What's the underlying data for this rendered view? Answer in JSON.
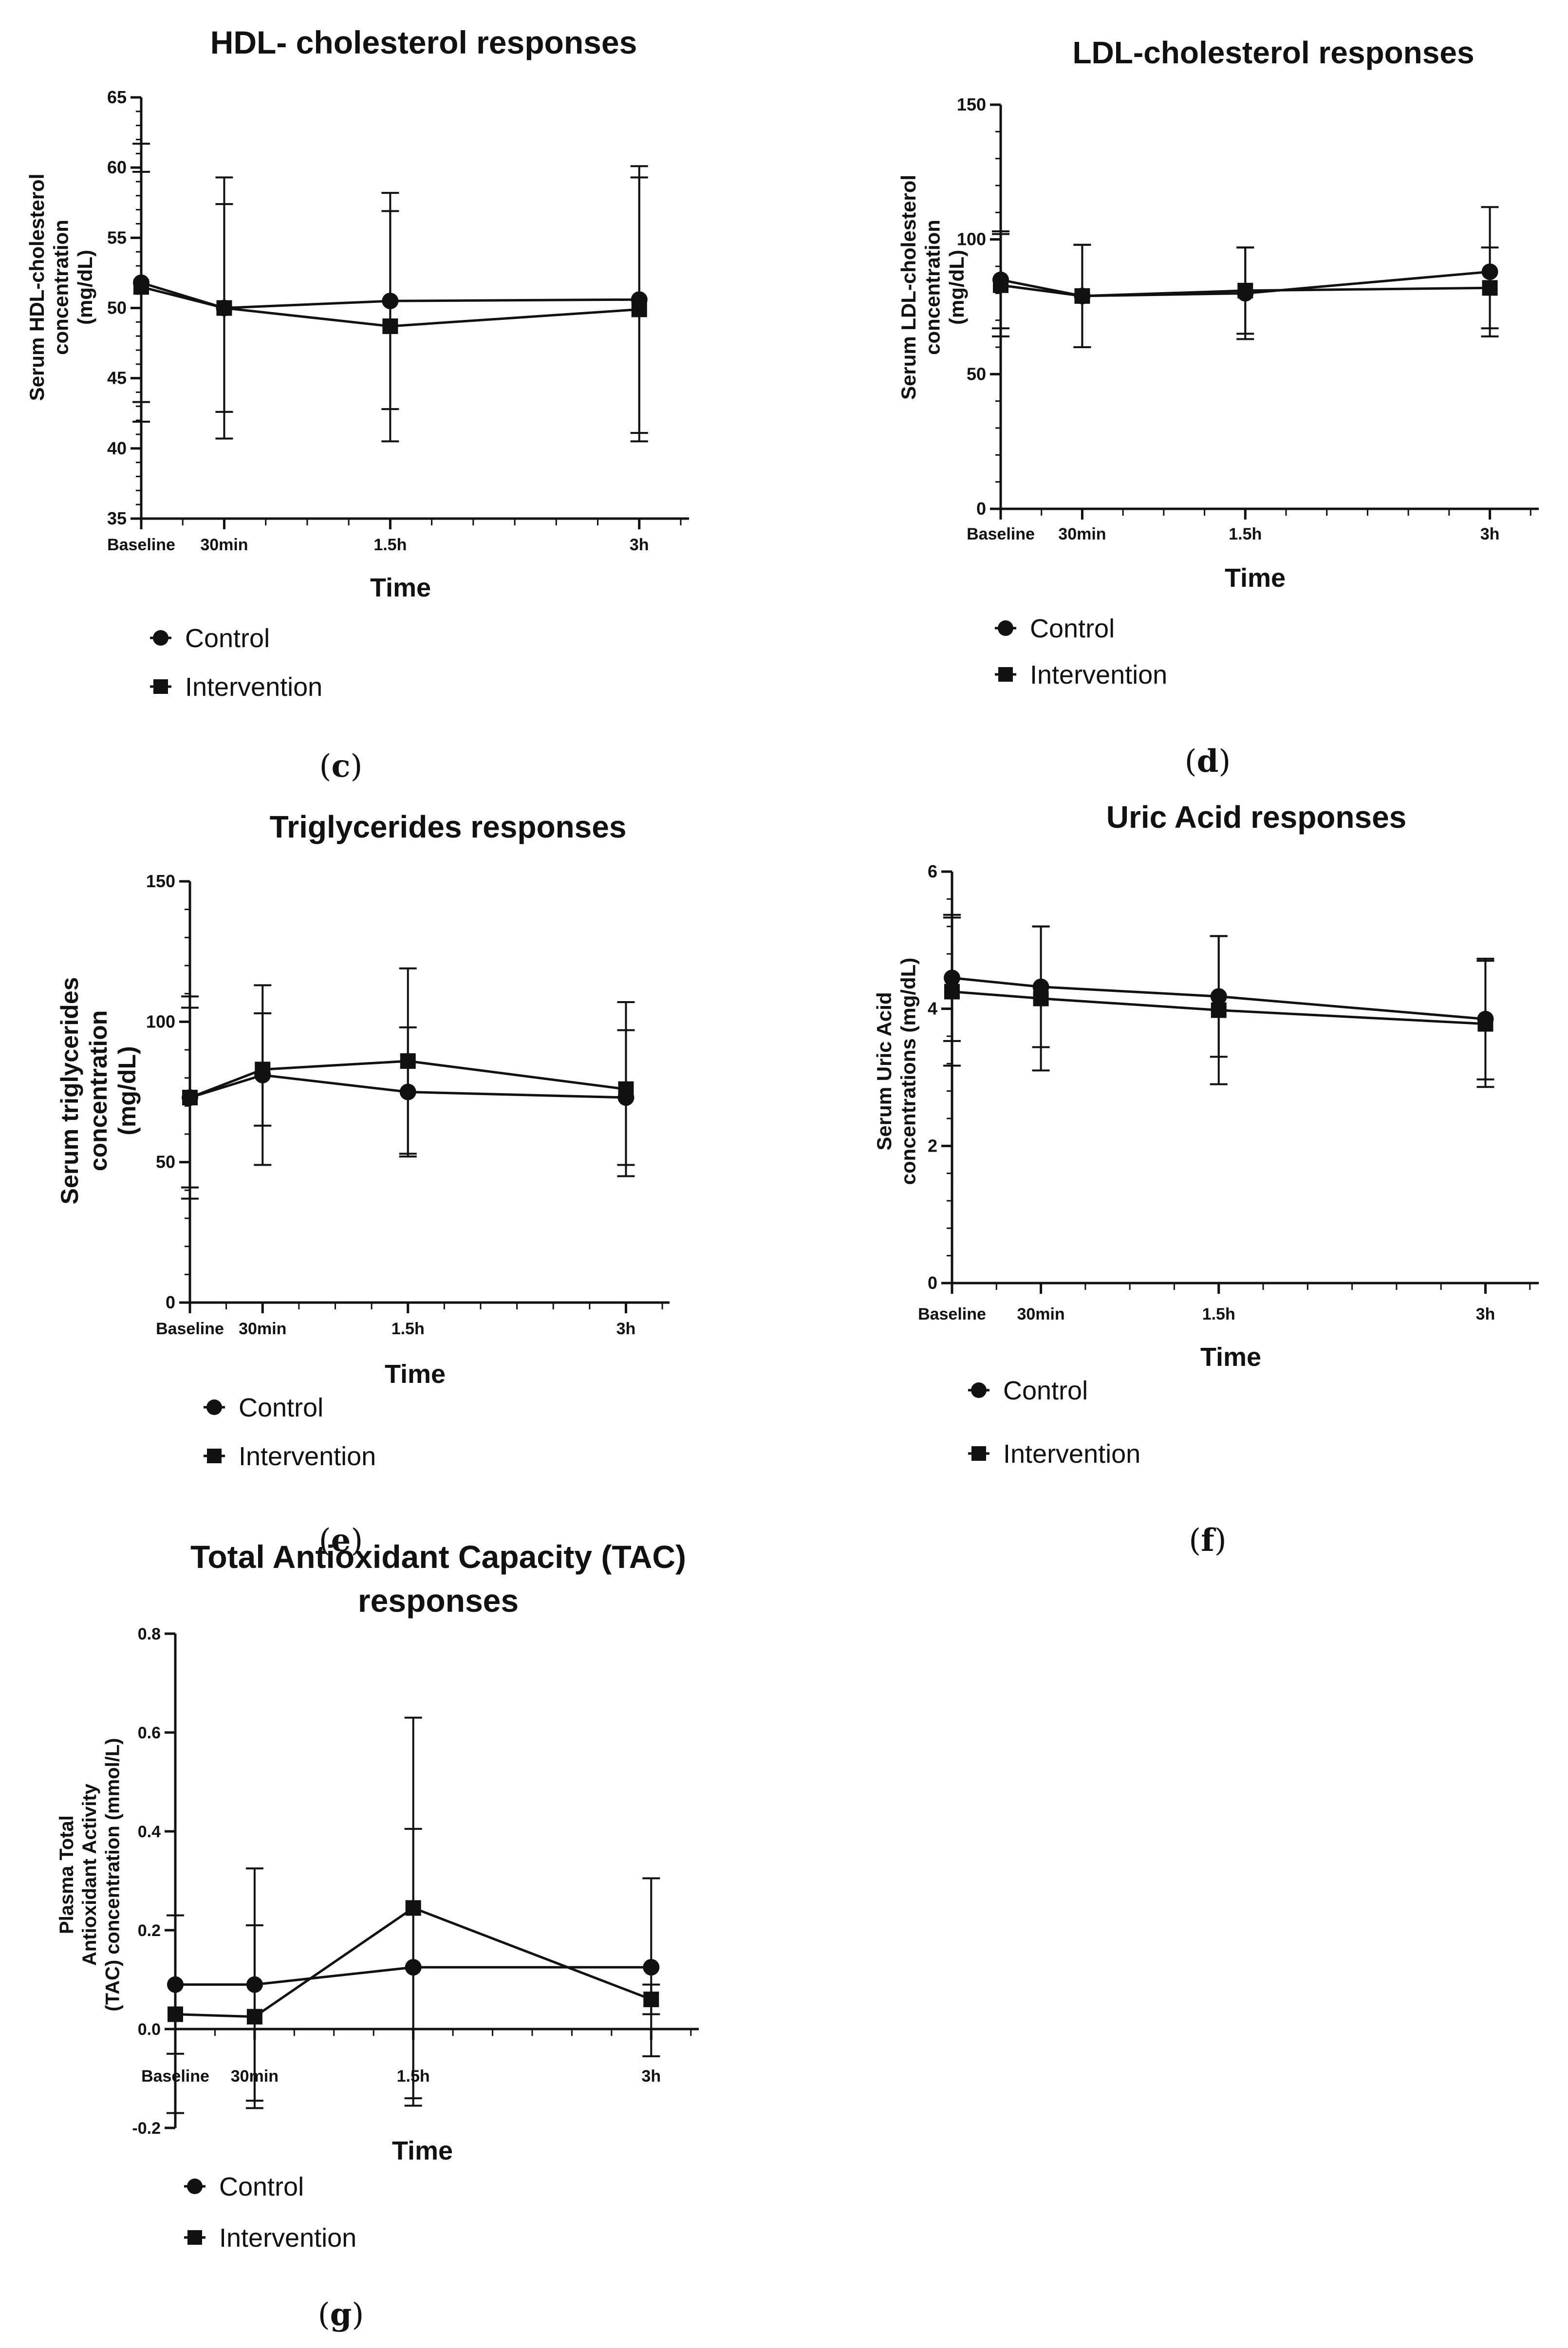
{
  "chart_data": [
    {
      "id": "c",
      "type": "line",
      "title": "HDL- cholesterol responses",
      "xlabel": "Time",
      "ylabel": "Serum HDL-cholesterol concentration (mg/dL)",
      "ylabel_lines": [
        "Serum HDL-cholesterol",
        "concentration",
        "(mg/dL)"
      ],
      "categories": [
        "Baseline",
        "30min",
        "1.5h",
        "3h"
      ],
      "x_hours": [
        0,
        0.5,
        1.5,
        3
      ],
      "x_range": [
        0,
        3.3
      ],
      "ylim": [
        35,
        65
      ],
      "yticks": [
        35,
        40,
        45,
        50,
        55,
        60,
        65
      ],
      "series": [
        {
          "name": "Control",
          "marker": "circle",
          "values": [
            51.8,
            50.0,
            50.5,
            50.6
          ],
          "error": [
            9.9,
            7.4,
            7.7,
            9.5
          ]
        },
        {
          "name": "Intervention",
          "marker": "square",
          "values": [
            51.5,
            50.0,
            48.7,
            49.9
          ],
          "error": [
            8.2,
            9.3,
            8.2,
            9.4
          ]
        }
      ],
      "panel_label": "c"
    },
    {
      "id": "d",
      "type": "line",
      "title": "LDL-cholesterol responses",
      "xlabel": "Time",
      "ylabel": "Serum LDL-cholesterol concentration (mg/dL)",
      "ylabel_lines": [
        "Serum LDL-cholesterol",
        "concentration",
        "(mg/dL)"
      ],
      "categories": [
        "Baseline",
        "30min",
        "1.5h",
        "3h"
      ],
      "x_hours": [
        0,
        0.5,
        1.5,
        3
      ],
      "x_range": [
        0,
        3.3
      ],
      "ylim": [
        0,
        150
      ],
      "yticks": [
        0,
        50,
        100,
        150
      ],
      "series": [
        {
          "name": "Control",
          "marker": "circle",
          "values": [
            85,
            79,
            80,
            88
          ],
          "error": [
            18,
            19,
            17,
            24
          ]
        },
        {
          "name": "Intervention",
          "marker": "square",
          "values": [
            83,
            79,
            81,
            82
          ],
          "error": [
            19,
            19,
            16,
            15
          ]
        }
      ],
      "panel_label": "d"
    },
    {
      "id": "e",
      "type": "line",
      "title": "Triglycerides responses",
      "xlabel": "Time",
      "ylabel": "Serum triglycerides concentration (mg/dL)",
      "ylabel_lines": [
        "Serum triglycerides",
        "concentration",
        "(mg/dL)"
      ],
      "categories": [
        "Baseline",
        "30min",
        "1.5h",
        "3h"
      ],
      "x_hours": [
        0,
        0.5,
        1.5,
        3
      ],
      "x_range": [
        0,
        3.3
      ],
      "ylim": [
        0,
        150
      ],
      "yticks": [
        0,
        50,
        100,
        150
      ],
      "series": [
        {
          "name": "Control",
          "marker": "circle",
          "values": [
            73,
            81,
            75,
            73
          ],
          "error": [
            36,
            32,
            23,
            24
          ]
        },
        {
          "name": "Intervention",
          "marker": "square",
          "values": [
            73,
            83,
            86,
            76
          ],
          "error": [
            32,
            20,
            33,
            31
          ]
        }
      ],
      "panel_label": "e"
    },
    {
      "id": "f",
      "type": "line",
      "title": "Uric Acid responses",
      "xlabel": "Time",
      "ylabel": "Serum Uric Acid concentrations (mg/dL)",
      "ylabel_lines": [
        "Serum Uric Acid",
        "concentrations (mg/dL)"
      ],
      "categories": [
        "Baseline",
        "30min",
        "1.5h",
        "3h"
      ],
      "x_hours": [
        0,
        0.5,
        1.5,
        3
      ],
      "x_range": [
        0,
        3.3
      ],
      "ylim": [
        0,
        6
      ],
      "yticks": [
        0,
        2,
        4,
        6
      ],
      "series": [
        {
          "name": "Control",
          "marker": "circle",
          "values": [
            4.45,
            4.32,
            4.18,
            3.85
          ],
          "error": [
            0.92,
            0.88,
            0.88,
            0.88
          ]
        },
        {
          "name": "Intervention",
          "marker": "square",
          "values": [
            4.25,
            4.15,
            3.98,
            3.78
          ],
          "error": [
            1.08,
            1.05,
            1.08,
            0.92
          ]
        }
      ],
      "panel_label": "f"
    },
    {
      "id": "g",
      "type": "line",
      "title": "Total Antioxidant Capacity (TAC) responses",
      "title_lines": [
        "Total Antioxidant Capacity (TAC)",
        "responses"
      ],
      "xlabel": "Time",
      "ylabel": "Plasma Total Antioxidant Activity (TAC) concentration (mmol/L)",
      "ylabel_lines": [
        "Plasma Total",
        "Antioxidant Activity",
        "(TAC) concentration (mmol/L)"
      ],
      "categories": [
        "Baseline",
        "30min",
        "1.5h",
        "3h"
      ],
      "x_hours": [
        0,
        0.5,
        1.5,
        3
      ],
      "x_range": [
        0,
        3.3
      ],
      "ylim": [
        -0.2,
        0.8
      ],
      "yticks": [
        -0.2,
        0.0,
        0.2,
        0.4,
        0.6,
        0.8
      ],
      "series": [
        {
          "name": "Control",
          "marker": "circle",
          "values": [
            0.09,
            0.09,
            0.125,
            0.125
          ],
          "error": [
            0.14,
            0.235,
            0.28,
            0.18
          ]
        },
        {
          "name": "Intervention",
          "marker": "square",
          "values": [
            0.03,
            0.025,
            0.245,
            0.06
          ],
          "error": [
            0.2,
            0.185,
            0.385,
            0.03
          ]
        }
      ],
      "panel_label": "g"
    }
  ]
}
